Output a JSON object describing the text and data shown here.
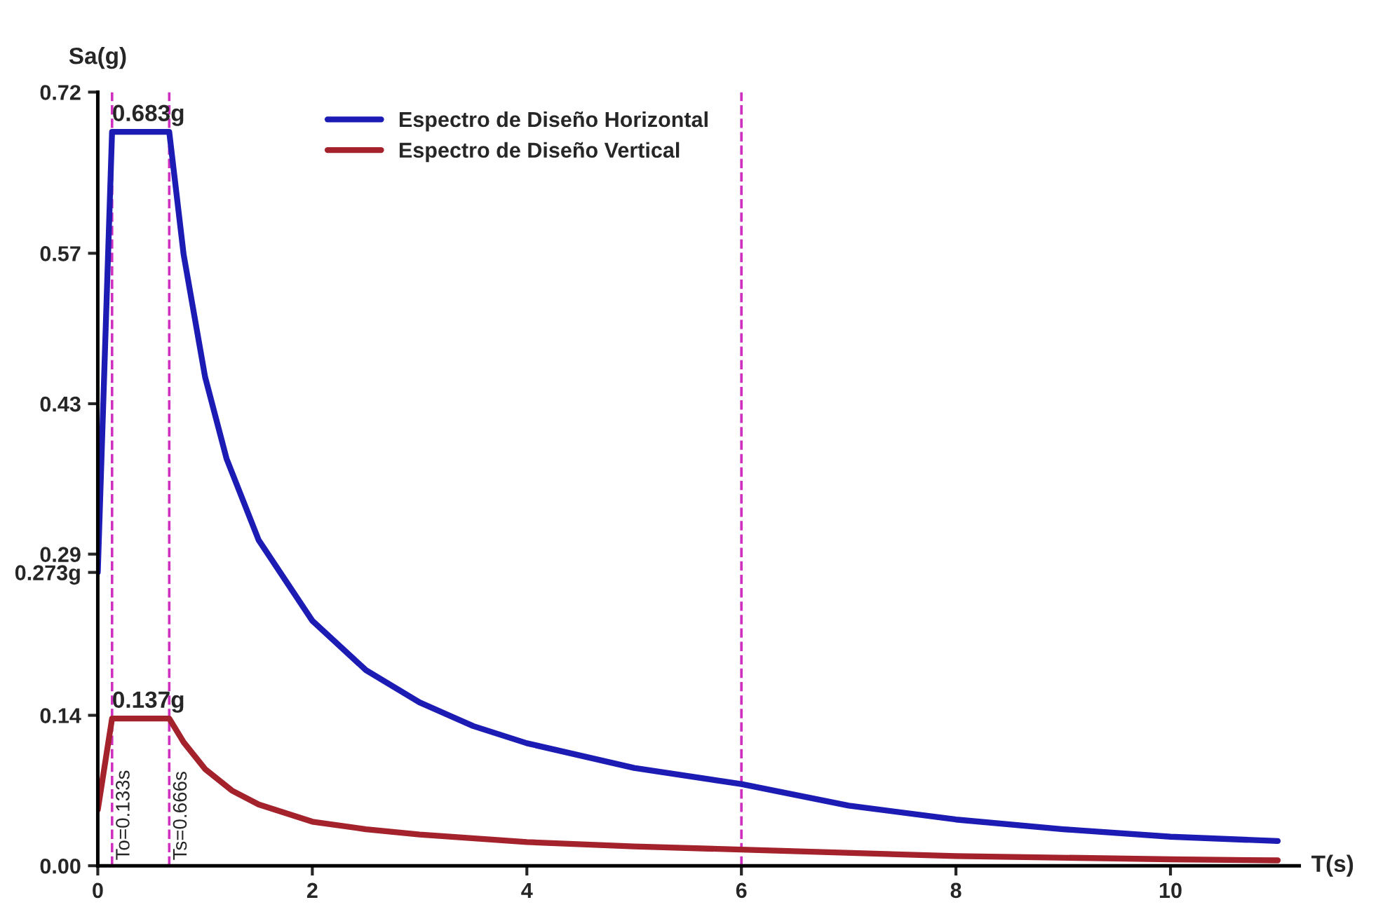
{
  "chart_data": {
    "type": "line",
    "xlabel": "T(s)",
    "ylabel": "Sa(g)",
    "xlim": [
      0,
      11.2
    ],
    "xticks": [
      0,
      2,
      4,
      6,
      8,
      10
    ],
    "ylim": [
      0,
      0.72
    ],
    "yticks": [
      {
        "value": 0,
        "label": "0.00"
      },
      0.14,
      {
        "value": 0.273,
        "label": "0.273g"
      },
      0.29,
      0.43,
      0.57,
      0.72
    ],
    "grid": false,
    "legend": "top",
    "line_style": "solid",
    "series": [
      {
        "name": "Espectro de Diseño Horizontal",
        "color": "#1c1cb4",
        "x": [
          0,
          0.133,
          0.666,
          0.8,
          1.0,
          1.2,
          1.5,
          2,
          2.5,
          3,
          3.5,
          4,
          5,
          6,
          7,
          8,
          9,
          10,
          11
        ],
        "values": [
          0.273,
          0.683,
          0.683,
          0.569,
          0.455,
          0.379,
          0.303,
          0.228,
          0.182,
          0.152,
          0.13,
          0.114,
          0.091,
          0.076,
          0.056,
          0.043,
          0.034,
          0.027,
          0.023
        ]
      },
      {
        "name": "Espectro de Diseño Vertical",
        "color": "#a3222c",
        "x": [
          0,
          0.133,
          0.666,
          0.8,
          1.0,
          1.25,
          1.5,
          2,
          2.5,
          3,
          4,
          5,
          6,
          8,
          10,
          11
        ],
        "values": [
          0.052,
          0.137,
          0.137,
          0.115,
          0.09,
          0.07,
          0.057,
          0.041,
          0.034,
          0.029,
          0.022,
          0.018,
          0.015,
          0.009,
          0.006,
          0.005
        ]
      }
    ],
    "ref_lines": [
      {
        "axis": "x",
        "value": 0.133,
        "label": "To=0.133s",
        "color": "#d030c0",
        "line_style": "dashed"
      },
      {
        "axis": "x",
        "value": 0.666,
        "label": "Ts=0.666s",
        "color": "#d030c0",
        "line_style": "dashed"
      },
      {
        "axis": "x",
        "value": 6,
        "label": null,
        "color": "#d030c0",
        "line_style": "dashed"
      }
    ],
    "annotations": [
      {
        "text": "0.683g",
        "x": 0.133,
        "y": 0.683
      },
      {
        "text": "0.137g",
        "x": 0.133,
        "y": 0.137
      }
    ]
  }
}
